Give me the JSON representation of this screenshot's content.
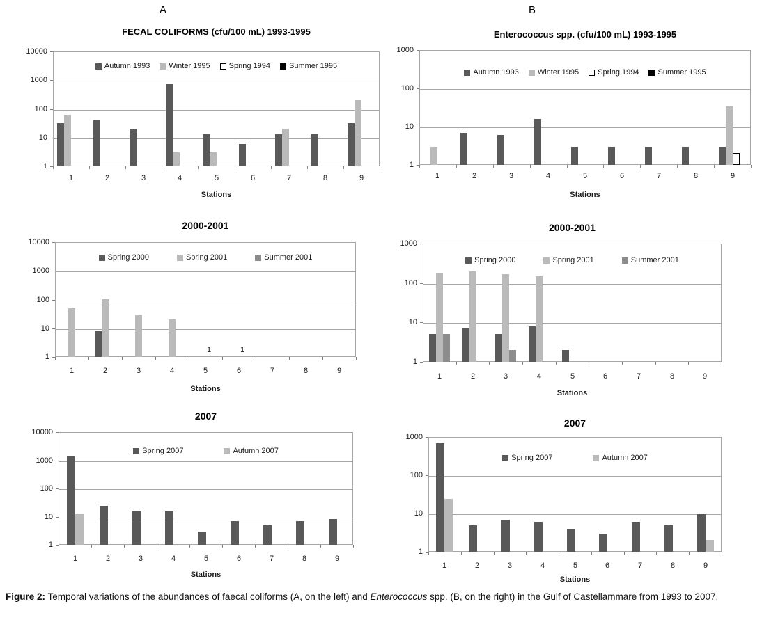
{
  "panels": {
    "a": "A",
    "b": "B"
  },
  "xlabel": "Stations",
  "categories": [
    "1",
    "2",
    "3",
    "4",
    "5",
    "6",
    "7",
    "8",
    "9"
  ],
  "colors": {
    "dark": "#595959",
    "light": "#bababa",
    "medium": "#8c8c8c",
    "white": "#ffffff",
    "black": "#000000",
    "grid": "#a6a6a6",
    "axis": "#7f7f7f"
  },
  "chart_data": [
    {
      "id": "a1",
      "type": "bar",
      "scale": "log",
      "grid": true,
      "legend_position": "top-center-inside",
      "title": "FECAL COLIFORMS (cfu/100 mL) 1993-1995",
      "ylim": [
        1,
        10000
      ],
      "yticks": [
        "10000",
        "1000",
        "100",
        "10",
        "1"
      ],
      "xlabel": "Stations",
      "categories": [
        "1",
        "2",
        "3",
        "4",
        "5",
        "6",
        "7",
        "8",
        "9"
      ],
      "series": [
        {
          "name": "Autumn 1993",
          "swatch": "dark",
          "values": [
            32,
            40,
            20,
            750,
            13,
            6,
            13,
            13,
            32
          ]
        },
        {
          "name": "Winter 1995",
          "swatch": "light",
          "values": [
            62,
            0,
            0,
            3,
            3,
            0,
            20,
            0,
            200
          ]
        },
        {
          "name": "Spring 1994",
          "swatch": "white",
          "values": [
            0,
            0,
            0,
            0,
            0,
            0,
            0,
            0,
            0
          ]
        },
        {
          "name": "Summer 1995",
          "swatch": "black",
          "values": [
            0,
            0,
            0,
            0,
            0,
            0,
            0,
            0,
            0
          ]
        }
      ],
      "annotations": []
    },
    {
      "id": "b1",
      "type": "bar",
      "scale": "log",
      "grid": true,
      "legend_position": "top-center-inside",
      "title": "Enterococcus spp. (cfu/100 mL) 1993-1995",
      "ylim": [
        1,
        1000
      ],
      "yticks": [
        "1000",
        "100",
        "10",
        "1"
      ],
      "xlabel": "Stations",
      "categories": [
        "1",
        "2",
        "3",
        "4",
        "5",
        "6",
        "7",
        "8",
        "9"
      ],
      "series": [
        {
          "name": "Autumn 1993",
          "swatch": "dark",
          "values": [
            0,
            7,
            6,
            16,
            3,
            3,
            3,
            3,
            3
          ]
        },
        {
          "name": "Winter 1995",
          "swatch": "light",
          "values": [
            3,
            0,
            0,
            0,
            0,
            0,
            0,
            0,
            33
          ]
        },
        {
          "name": "Spring 1994",
          "swatch": "white",
          "values": [
            0,
            0,
            0,
            0,
            0,
            0,
            0,
            0,
            2
          ]
        },
        {
          "name": "Summer 1995",
          "swatch": "black",
          "values": [
            0,
            0,
            0,
            0,
            0,
            0,
            0,
            0,
            0
          ]
        }
      ],
      "annotations": []
    },
    {
      "id": "a2",
      "type": "bar",
      "scale": "log",
      "grid": true,
      "legend_position": "top-center-inside",
      "title": "2000-2001",
      "ylim": [
        1,
        10000
      ],
      "yticks": [
        "10000",
        "1000",
        "100",
        "10",
        "1"
      ],
      "xlabel": "Stations",
      "categories": [
        "1",
        "2",
        "3",
        "4",
        "5",
        "6",
        "7",
        "8",
        "9"
      ],
      "series": [
        {
          "name": "Spring 2000",
          "swatch": "dark",
          "values": [
            0,
            8,
            0,
            0,
            0,
            0,
            0,
            0,
            0
          ]
        },
        {
          "name": "Spring 2001",
          "swatch": "light",
          "values": [
            50,
            100,
            28,
            20,
            0,
            0,
            0,
            0,
            0
          ]
        },
        {
          "name": "Summer 2001",
          "swatch": "medium",
          "values": [
            0,
            0,
            0,
            0,
            1,
            1,
            0,
            0,
            0
          ]
        }
      ],
      "annotations": [
        {
          "station": 5,
          "text": "1"
        },
        {
          "station": 6,
          "text": "1"
        }
      ]
    },
    {
      "id": "b2",
      "type": "bar",
      "scale": "log",
      "grid": true,
      "legend_position": "top-center-inside",
      "title": "2000-2001",
      "ylim": [
        1,
        1000
      ],
      "yticks": [
        "1000",
        "100",
        "10",
        "1"
      ],
      "xlabel": "Stations",
      "categories": [
        "1",
        "2",
        "3",
        "4",
        "5",
        "6",
        "7",
        "8",
        "9"
      ],
      "series": [
        {
          "name": "Spring 2000",
          "swatch": "dark",
          "values": [
            5,
            7,
            5,
            8,
            2,
            0,
            0,
            0,
            0
          ]
        },
        {
          "name": "Spring 2001",
          "swatch": "light",
          "values": [
            180,
            200,
            170,
            150,
            0,
            0,
            0,
            0,
            0
          ]
        },
        {
          "name": "Summer 2001",
          "swatch": "medium",
          "values": [
            5,
            0,
            2,
            0,
            0,
            0,
            0,
            0,
            0
          ]
        }
      ],
      "annotations": []
    },
    {
      "id": "a3",
      "type": "bar",
      "scale": "log",
      "grid": true,
      "legend_position": "top-center-inside",
      "title": "2007",
      "ylim": [
        1,
        10000
      ],
      "yticks": [
        "10000",
        "1000",
        "100",
        "10",
        "1"
      ],
      "xlabel": "Stations",
      "categories": [
        "1",
        "2",
        "3",
        "4",
        "5",
        "6",
        "7",
        "8",
        "9"
      ],
      "series": [
        {
          "name": "Spring 2007",
          "swatch": "dark",
          "values": [
            1400,
            24,
            15,
            15,
            3,
            7,
            5,
            7,
            8
          ]
        },
        {
          "name": "Autumn 2007",
          "swatch": "light",
          "values": [
            12,
            0,
            0,
            0,
            0,
            0,
            0,
            0,
            0
          ]
        }
      ],
      "annotations": []
    },
    {
      "id": "b3",
      "type": "bar",
      "scale": "log",
      "grid": true,
      "legend_position": "top-center-inside",
      "title": "2007",
      "ylim": [
        1,
        1000
      ],
      "yticks": [
        "1000",
        "100",
        "10",
        "1"
      ],
      "xlabel": "Stations",
      "categories": [
        "1",
        "2",
        "3",
        "4",
        "5",
        "6",
        "7",
        "8",
        "9"
      ],
      "series": [
        {
          "name": "Spring 2007",
          "swatch": "dark",
          "values": [
            700,
            5,
            7,
            6,
            4,
            3,
            6,
            5,
            10
          ]
        },
        {
          "name": "Autumn 2007",
          "swatch": "light",
          "values": [
            24,
            0,
            0,
            0,
            0,
            0,
            0,
            0,
            2
          ]
        }
      ],
      "annotations": []
    }
  ],
  "caption": {
    "label": "Figure 2:",
    "pre": " Temporal variations of the abundances of faecal coliforms (A, on the left) and ",
    "italic": "Enterococcus",
    "post": " spp. (B, on the right) in the Gulf of Castellammare from 1993 to 2007."
  }
}
